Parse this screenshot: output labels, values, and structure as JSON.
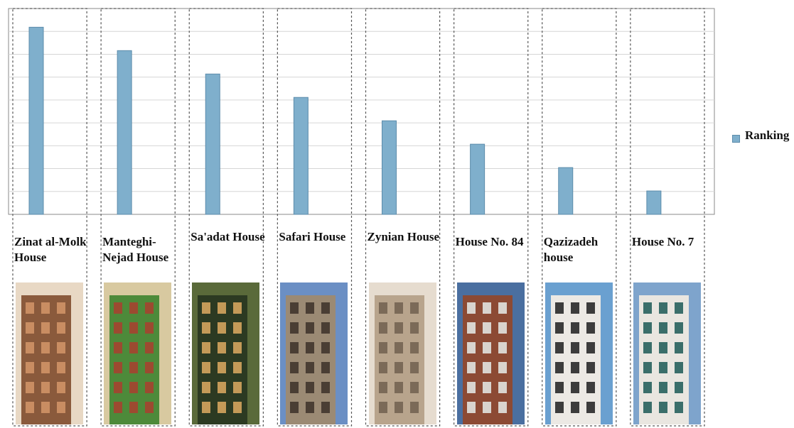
{
  "chart_data": {
    "type": "bar",
    "categories": [
      "Zinat al-Molk House",
      "Manteghi-Nejad House",
      "Sa'adat House",
      "Safari House",
      "Zynian House",
      "House No. 84",
      "Qazizadeh house",
      "House No. 7"
    ],
    "category_label_lines": [
      "Zinat al-Molk\nHouse",
      "Manteghi-\nNejad House",
      "Sa'adat House",
      "Safari House",
      "Zynian House",
      "House No. 84",
      "Qazizadeh\nhouse",
      "House No. 7"
    ],
    "series": [
      {
        "name": "Ranking",
        "values": [
          8,
          7,
          6,
          5,
          4,
          3,
          2,
          1
        ],
        "color": "#7fafcc"
      }
    ],
    "ylim": [
      0,
      8.8
    ],
    "grid": true,
    "legend_position": "right"
  },
  "photos": [
    {
      "subject": "zinat-al-molk-courtyard",
      "colors": [
        "#8a5a3c",
        "#c98d62",
        "#e8d8c4"
      ]
    },
    {
      "subject": "manteghi-nejad-garden",
      "colors": [
        "#4d8a3a",
        "#9c4a30",
        "#d8c9a0"
      ]
    },
    {
      "subject": "saadat-house-trees",
      "colors": [
        "#2c3a22",
        "#c49a58",
        "#5a6a3a"
      ]
    },
    {
      "subject": "safari-house-facade",
      "colors": [
        "#9b8a74",
        "#4a3e34",
        "#6b8fc4"
      ]
    },
    {
      "subject": "zynian-house-facade",
      "colors": [
        "#b8a48c",
        "#7b6a58",
        "#e6dccf"
      ]
    },
    {
      "subject": "house-no-84-brick",
      "colors": [
        "#8c4a34",
        "#d9d4ce",
        "#4a6fa0"
      ]
    },
    {
      "subject": "qazizadeh-house-modern",
      "colors": [
        "#ece9e4",
        "#3c3c3c",
        "#6aa0d0"
      ]
    },
    {
      "subject": "house-no-7-modern",
      "colors": [
        "#e9e6e0",
        "#3a6e6a",
        "#7ea4cc"
      ]
    }
  ]
}
